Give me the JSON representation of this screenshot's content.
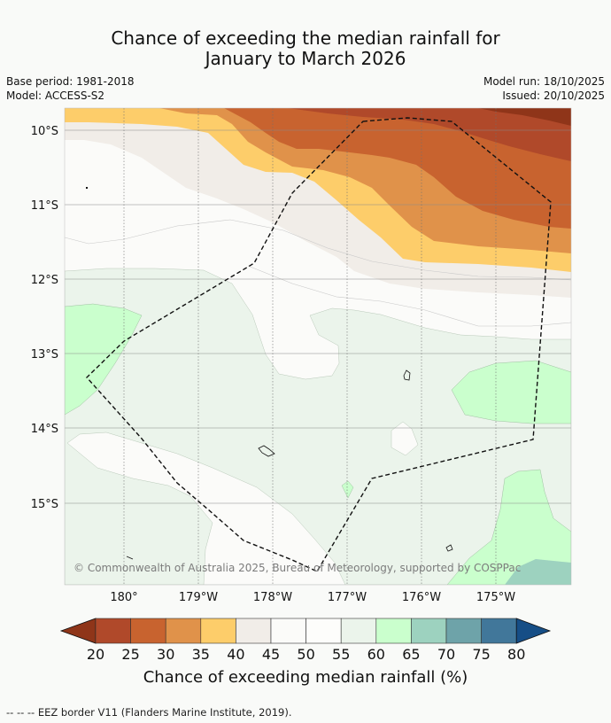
{
  "title_line1": "Chance of exceeding the median rainfall for",
  "title_line2": "January to March 2026",
  "meta": {
    "base_period": "Base period: 1981-2018",
    "model": "Model: ACCESS-S2",
    "model_run": "Model run: 18/10/2025",
    "issued": "Issued: 20/10/2025"
  },
  "map": {
    "lat_labels": [
      "10°S",
      "11°S",
      "12°S",
      "13°S",
      "14°S",
      "15°S"
    ],
    "lon_labels": [
      "180°",
      "179°W",
      "178°W",
      "177°W",
      "176°W",
      "175°W"
    ],
    "copyright": "© Commonwealth of Australia 2025, Bureau of Meteorology, supported by COSPPac"
  },
  "colorbar": {
    "title": "Chance of exceeding median rainfall (%)",
    "ticks": [
      "20",
      "25",
      "30",
      "35",
      "40",
      "45",
      "50",
      "55",
      "60",
      "65",
      "70",
      "75",
      "80"
    ],
    "colors": [
      "#8f3519",
      "#b0492a",
      "#c8632f",
      "#e0924a",
      "#fdcd6a",
      "#f1ede8",
      "#fbfbf9",
      "#fdfdfb",
      "#ebf4eb",
      "#caffcd",
      "#9dd2bf",
      "#6ea3a9",
      "#41779a",
      "#164e86"
    ]
  },
  "footer": "--  --  -- EEZ border V11 (Flanders Marine Institute, 2019)."
}
